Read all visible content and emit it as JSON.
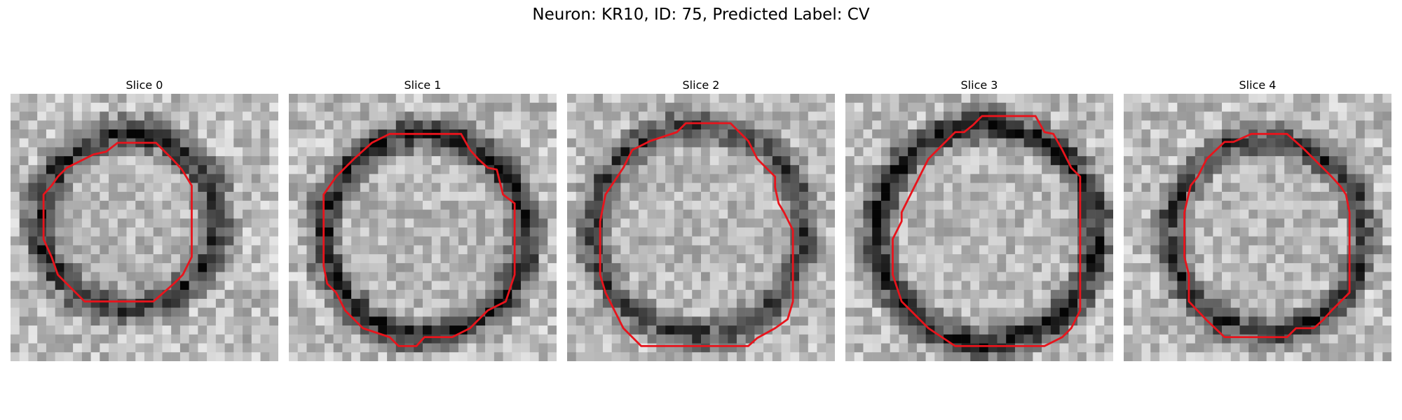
{
  "figure": {
    "title": "Neuron: KR10, ID: 75, Predicted Label: CV"
  },
  "panels": [
    {
      "title": "Slice 0",
      "seed": 11,
      "contour_color": "#e8141c",
      "contour": [
        [
          12,
          5.5
        ],
        [
          16.3,
          5.5
        ],
        [
          18.3,
          7.5
        ],
        [
          19.2,
          8.5
        ],
        [
          20.3,
          10.3
        ],
        [
          20.3,
          18.3
        ],
        [
          19.3,
          20.3
        ],
        [
          18.3,
          21.3
        ],
        [
          16,
          23.3
        ],
        [
          10,
          23.3
        ],
        [
          8.3,
          23.3
        ],
        [
          6.3,
          21.3
        ],
        [
          5.3,
          20.3
        ],
        [
          4.6,
          18.3
        ],
        [
          3.7,
          16.3
        ],
        [
          3.7,
          11.3
        ],
        [
          4.6,
          10.3
        ],
        [
          5.3,
          9.3
        ],
        [
          6.3,
          8.3
        ],
        [
          8.3,
          7.3
        ],
        [
          9.3,
          6.8
        ],
        [
          10.7,
          6.5
        ]
      ],
      "ring": {
        "cx": 13.2,
        "cy": 14.2,
        "r": 9.8,
        "w": 2.8,
        "dark": 0.62
      }
    },
    {
      "title": "Slice 1",
      "seed": 23,
      "contour_color": "#e8141c",
      "contour": [
        [
          11.3,
          4.5
        ],
        [
          19.3,
          4.5
        ],
        [
          20.3,
          6.3
        ],
        [
          21.3,
          7.4
        ],
        [
          22.3,
          8.3
        ],
        [
          23.3,
          8.5
        ],
        [
          24,
          11.3
        ],
        [
          25.3,
          12.3
        ],
        [
          25.3,
          20.3
        ],
        [
          24.3,
          23.3
        ],
        [
          22.3,
          24.3
        ],
        [
          20.3,
          26.3
        ],
        [
          18.3,
          27.3
        ],
        [
          15.2,
          27.3
        ],
        [
          14.3,
          28.3
        ],
        [
          12.3,
          28.3
        ],
        [
          11.3,
          27.3
        ],
        [
          8.3,
          26.3
        ],
        [
          6.3,
          24.3
        ],
        [
          5.3,
          22.3
        ],
        [
          4.3,
          21.3
        ],
        [
          3.9,
          19.3
        ],
        [
          3.9,
          11.3
        ],
        [
          5.3,
          9.3
        ],
        [
          7.3,
          7.3
        ],
        [
          9.3,
          5.5
        ]
      ],
      "ring": {
        "cx": 15.2,
        "cy": 15.8,
        "r": 11.3,
        "w": 2.6,
        "dark": 0.7
      }
    },
    {
      "title": "Slice 2",
      "seed": 37,
      "contour_color": "#e8141c",
      "contour": [
        [
          13.3,
          3.3
        ],
        [
          18.3,
          3.3
        ],
        [
          20.3,
          5.3
        ],
        [
          21.3,
          7.3
        ],
        [
          22.3,
          8.3
        ],
        [
          23.3,
          9.3
        ],
        [
          23.3,
          10.5
        ],
        [
          23.7,
          12.3
        ],
        [
          24.3,
          13.3
        ],
        [
          25.3,
          15.3
        ],
        [
          25.3,
          23.3
        ],
        [
          24.7,
          25.3
        ],
        [
          23.3,
          26.3
        ],
        [
          21.3,
          27.4
        ],
        [
          20.3,
          28.3
        ],
        [
          8.3,
          28.3
        ],
        [
          6.3,
          26.3
        ],
        [
          5.3,
          24.3
        ],
        [
          4.3,
          22.3
        ],
        [
          3.7,
          20.3
        ],
        [
          3.7,
          14.3
        ],
        [
          4.3,
          11.3
        ],
        [
          6.3,
          8.3
        ],
        [
          7.3,
          6.3
        ],
        [
          9.3,
          5.3
        ],
        [
          12.3,
          4.3
        ]
      ],
      "ring": {
        "cx": 14.7,
        "cy": 15.3,
        "r": 11.8,
        "w": 2.6,
        "dark": 0.55
      }
    },
    {
      "title": "Slice 3",
      "seed": 53,
      "contour_color": "#e8141c",
      "contour": [
        [
          15.3,
          2.5
        ],
        [
          21.3,
          2.5
        ],
        [
          22.3,
          4.3
        ],
        [
          23.3,
          4.5
        ],
        [
          24.3,
          6.3
        ],
        [
          25.3,
          8.3
        ],
        [
          26.3,
          9.3
        ],
        [
          26.3,
          24.3
        ],
        [
          25.3,
          26.3
        ],
        [
          24.3,
          27.3
        ],
        [
          22.3,
          28.3
        ],
        [
          12.3,
          28.3
        ],
        [
          9.3,
          26.3
        ],
        [
          7.3,
          24.3
        ],
        [
          6.3,
          23.3
        ],
        [
          5.3,
          20.3
        ],
        [
          5.3,
          16.3
        ],
        [
          6.3,
          14.3
        ],
        [
          6.3,
          13.3
        ],
        [
          7.3,
          11.3
        ],
        [
          8.3,
          9.3
        ],
        [
          9.3,
          7.3
        ],
        [
          11.3,
          5.3
        ],
        [
          12.3,
          4.3
        ],
        [
          13.3,
          4.3
        ],
        [
          14.3,
          3.5
        ]
      ],
      "ring": {
        "cx": 15.8,
        "cy": 15.8,
        "r": 12.3,
        "w": 2.6,
        "dark": 0.72
      }
    },
    {
      "title": "Slice 4",
      "seed": 71,
      "contour_color": "#e8141c",
      "contour": [
        [
          14.3,
          4.5
        ],
        [
          18.3,
          4.5
        ],
        [
          20.3,
          6.3
        ],
        [
          21.3,
          7.3
        ],
        [
          22.3,
          8.3
        ],
        [
          23.3,
          9.3
        ],
        [
          24.3,
          10.4
        ],
        [
          24.9,
          11.3
        ],
        [
          25.3,
          13.3
        ],
        [
          25.3,
          22.3
        ],
        [
          24.3,
          23.3
        ],
        [
          23.3,
          24.3
        ],
        [
          22.3,
          25.4
        ],
        [
          21.3,
          26.3
        ],
        [
          19.3,
          26.3
        ],
        [
          18.3,
          27.3
        ],
        [
          11.3,
          27.3
        ],
        [
          9.3,
          25.4
        ],
        [
          7.3,
          23.3
        ],
        [
          7.3,
          20.3
        ],
        [
          6.8,
          18.3
        ],
        [
          6.8,
          13.3
        ],
        [
          7.5,
          10.3
        ],
        [
          8.3,
          9.3
        ],
        [
          9.3,
          7.3
        ],
        [
          11.3,
          5.4
        ],
        [
          12.3,
          5.4
        ]
      ],
      "ring": {
        "cx": 16.0,
        "cy": 16.0,
        "r": 10.8,
        "w": 2.4,
        "dark": 0.6
      }
    }
  ]
}
